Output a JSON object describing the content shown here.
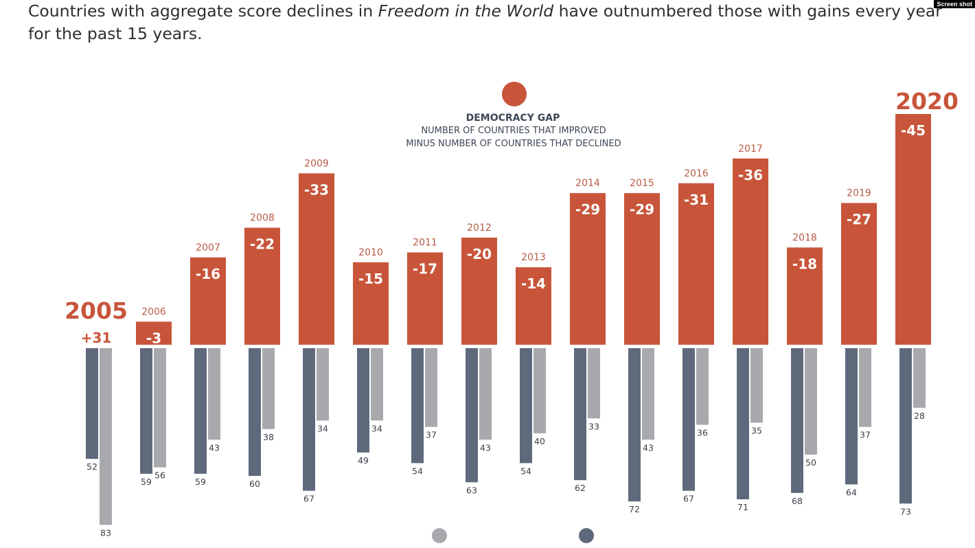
{
  "headline": {
    "before": "Countries with aggregate score declines in ",
    "italic": "Freedom in the World",
    "after": " have outnumbered those with gains every year for the past 15 years."
  },
  "badge": "Screen shot",
  "chart_data": {
    "type": "bar",
    "legend": {
      "title": "DEMOCRACY GAP",
      "line1": "NUMBER OF COUNTRIES THAT IMPROVED",
      "line2": "MINUS NUMBER OF COUNTRIES THAT DECLINED"
    },
    "categories": [
      "2005",
      "2006",
      "2007",
      "2008",
      "2009",
      "2010",
      "2011",
      "2012",
      "2013",
      "2014",
      "2015",
      "2016",
      "2017",
      "2018",
      "2019",
      "2020"
    ],
    "highlighted_categories": [
      "2005",
      "2020"
    ],
    "series": [
      {
        "key": "gap",
        "labels": [
          "+31",
          "-3",
          "-16",
          "-22",
          "-33",
          "-15",
          "-17",
          "-20",
          "-14",
          "-29",
          "-29",
          "-31",
          "-36",
          "-18",
          "-27",
          "-45"
        ],
        "values": [
          31,
          -3,
          -16,
          -22,
          -33,
          -15,
          -17,
          -20,
          -14,
          -29,
          -29,
          -31,
          -36,
          -18,
          -27,
          -45
        ]
      },
      {
        "key": "declined",
        "values": [
          52,
          59,
          59,
          60,
          67,
          49,
          54,
          63,
          54,
          62,
          72,
          67,
          71,
          68,
          64,
          73
        ]
      },
      {
        "key": "improved",
        "values": [
          83,
          56,
          43,
          38,
          34,
          34,
          37,
          43,
          40,
          33,
          43,
          36,
          35,
          50,
          37,
          28
        ]
      }
    ],
    "colors": {
      "gap": "#c8553a",
      "declined": "#5e6a7b",
      "improved": "#a7a9ad",
      "year_label": "#b85a43"
    }
  }
}
